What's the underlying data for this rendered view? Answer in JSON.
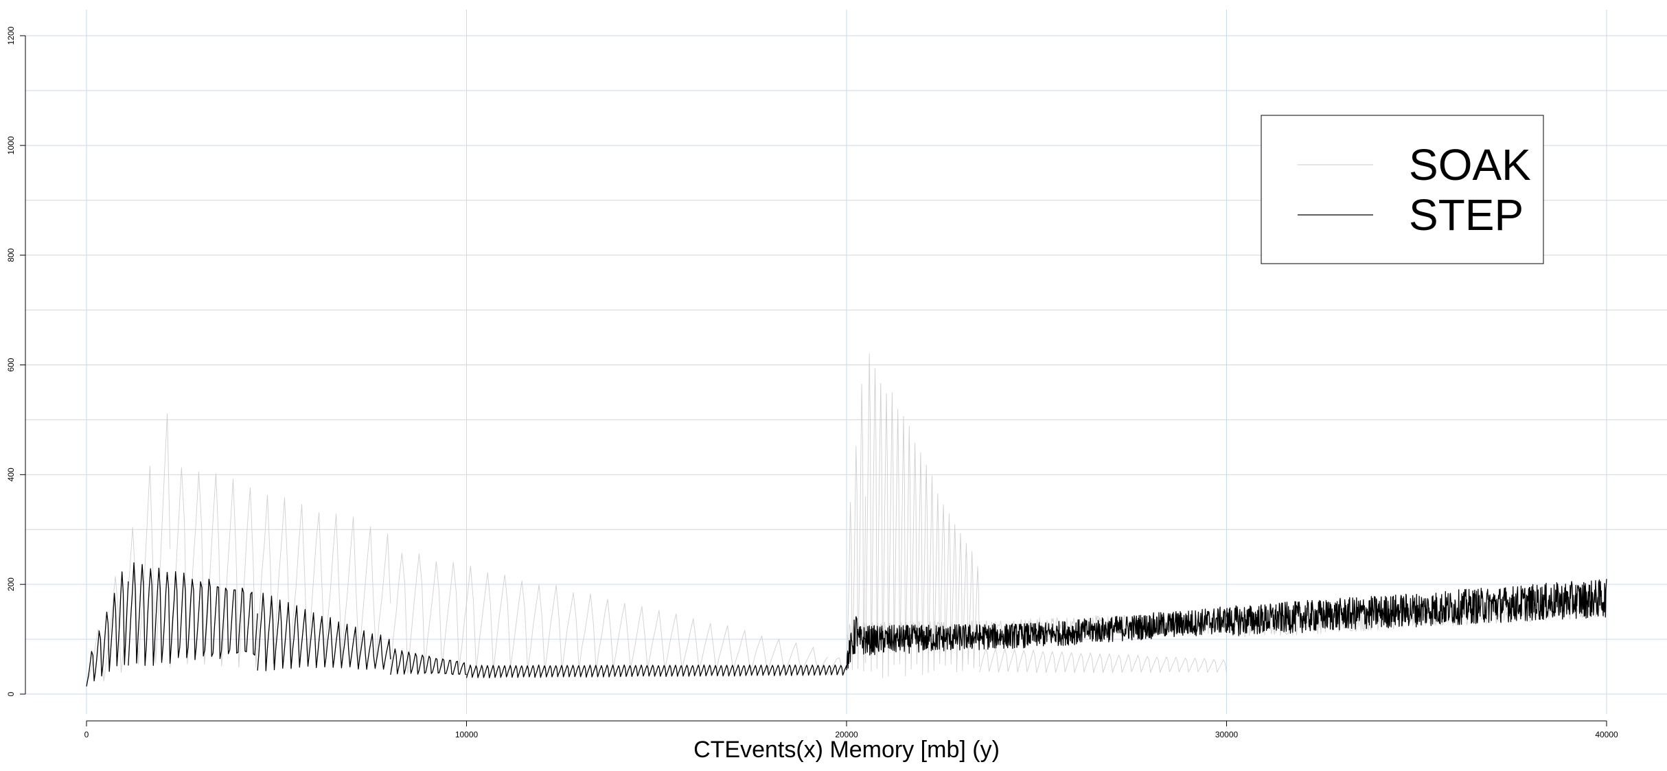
{
  "chart_data": {
    "type": "line",
    "title": "",
    "xlabel": "CTEvents(x)  Memory [mb] (y)",
    "ylabel": "",
    "xlim": [
      0,
      40000
    ],
    "ylim": [
      0,
      1200
    ],
    "x_ticks": [
      0,
      10000,
      20000,
      30000,
      40000
    ],
    "y_ticks": [
      0,
      200,
      400,
      600,
      800,
      1000,
      1200
    ],
    "grid": true,
    "legend_position": "top-right",
    "colors": {
      "SOAK": "#c8c8c8",
      "STEP": "#000000",
      "grid": "#c9d9f0",
      "axis": "#000000"
    },
    "series": [
      {
        "name": "SOAK",
        "segments": [
          {
            "x_start": 0,
            "x_end": 2200,
            "cycle": 450,
            "min_start": 20,
            "min_end": 40,
            "max_start": 60,
            "max_end": 550
          },
          {
            "x_start": 2200,
            "x_end": 8000,
            "cycle": 450,
            "min_start": 40,
            "min_end": 50,
            "max_start": 470,
            "max_end": 300
          },
          {
            "x_start": 8000,
            "x_end": 19500,
            "cycle": 450,
            "min_start": 45,
            "min_end": 35,
            "max_start": 290,
            "max_end": 80
          },
          {
            "x_start": 19500,
            "x_end": 20000,
            "cycle": 400,
            "min_start": 35,
            "min_end": 40,
            "max_start": 70,
            "max_end": 70
          },
          {
            "x_start": 20000,
            "x_end": 20500,
            "cycle": 150,
            "min_start": 40,
            "min_end": 45,
            "max_start": 300,
            "max_end": 710
          },
          {
            "x_start": 20500,
            "x_end": 23500,
            "cycle": 150,
            "min_start": 45,
            "min_end": 50,
            "max_start": 700,
            "max_end": 250
          },
          {
            "x_start": 23500,
            "x_end": 30000,
            "cycle": 250,
            "min_start": 40,
            "min_end": 40,
            "max_start": 90,
            "max_end": 65
          },
          {
            "x_start": 20000,
            "x_end": 30000,
            "cycle": 120,
            "min_start": 90,
            "min_end": 110,
            "max_start": 130,
            "max_end": 150
          },
          {
            "x_start": 30000,
            "x_end": 40000,
            "cycle": 120,
            "min_start": 100,
            "min_end": 140,
            "max_start": 150,
            "max_end": 180
          }
        ]
      },
      {
        "name": "STEP",
        "segments": [
          {
            "x_start": 0,
            "x_end": 1100,
            "cycle": 200,
            "min_start": 15,
            "min_end": 60,
            "max_start": 60,
            "max_end": 275
          },
          {
            "x_start": 1100,
            "x_end": 4500,
            "cycle": 220,
            "min_start": 50,
            "min_end": 45,
            "max_start": 270,
            "max_end": 210
          },
          {
            "x_start": 4500,
            "x_end": 8000,
            "cycle": 220,
            "min_start": 45,
            "min_end": 40,
            "max_start": 200,
            "max_end": 100
          },
          {
            "x_start": 8000,
            "x_end": 10000,
            "cycle": 180,
            "min_start": 35,
            "min_end": 30,
            "max_start": 90,
            "max_end": 60
          },
          {
            "x_start": 10000,
            "x_end": 20000,
            "cycle": 150,
            "min_start": 30,
            "min_end": 35,
            "max_start": 55,
            "max_end": 55
          },
          {
            "x_start": 20000,
            "x_end": 20300,
            "cycle": 60,
            "min_start": 40,
            "min_end": 80,
            "max_start": 80,
            "max_end": 165
          },
          {
            "x_start": 20300,
            "x_end": 25000,
            "cycle": 60,
            "min_start": 70,
            "min_end": 85,
            "max_start": 125,
            "max_end": 130
          },
          {
            "x_start": 25000,
            "x_end": 30000,
            "cycle": 60,
            "min_start": 85,
            "min_end": 110,
            "max_start": 130,
            "max_end": 160
          },
          {
            "x_start": 30000,
            "x_end": 40000,
            "cycle": 60,
            "min_start": 105,
            "min_end": 140,
            "max_start": 160,
            "max_end": 210
          }
        ]
      }
    ]
  }
}
